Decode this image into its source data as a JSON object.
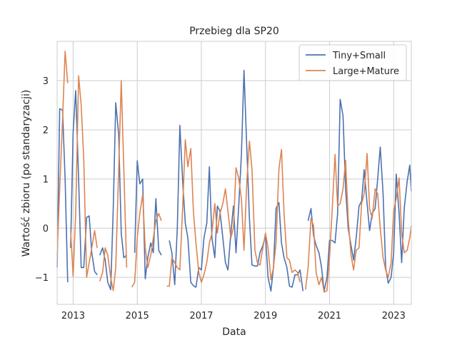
{
  "chart_data": {
    "type": "line",
    "title": "Przebieg dla SP20",
    "xlabel": "Data",
    "ylabel": "Wartość zbioru (po standaryzacji)",
    "xlim": [
      2012.5,
      2023.55
    ],
    "ylim": [
      -1.55,
      3.8
    ],
    "xticks": [
      2013,
      2015,
      2017,
      2019,
      2021,
      2023
    ],
    "yticks": [
      -1,
      0,
      1,
      2,
      3
    ],
    "grid": true,
    "legend_position": "top-right",
    "series": [
      {
        "name": "Tiny+Small",
        "color": "#4c72b0",
        "points": [
          [
            2012.5,
            -0.8
          ],
          [
            2012.58,
            2.43
          ],
          [
            2012.67,
            2.4
          ],
          [
            2012.75,
            1.0
          ],
          [
            2012.83,
            -1.1
          ],
          [
            null,
            null
          ],
          [
            2012.92,
            -0.4
          ],
          [
            2013.0,
            1.95
          ],
          [
            2013.08,
            2.8
          ],
          [
            2013.17,
            1.0
          ],
          [
            2013.25,
            -0.8
          ],
          [
            2013.33,
            -0.8
          ],
          [
            2013.42,
            0.22
          ],
          [
            2013.5,
            0.25
          ],
          [
            2013.58,
            -0.5
          ],
          [
            2013.67,
            -0.88
          ],
          [
            2013.75,
            -0.95
          ],
          [
            null,
            null
          ],
          [
            2013.83,
            -0.55
          ],
          [
            2013.92,
            -0.4
          ],
          [
            2014.0,
            -0.65
          ],
          [
            2014.08,
            -1.1
          ],
          [
            2014.17,
            -1.25
          ],
          [
            2014.25,
            0.4
          ],
          [
            2014.33,
            2.55
          ],
          [
            2014.42,
            1.9
          ],
          [
            2014.5,
            -0.1
          ],
          [
            2014.58,
            -0.6
          ],
          [
            2014.67,
            -0.55
          ],
          [
            null,
            null
          ],
          [
            2014.92,
            -0.5
          ],
          [
            2015.0,
            1.37
          ],
          [
            2015.08,
            0.9
          ],
          [
            2015.17,
            1.0
          ],
          [
            2015.25,
            -1.03
          ],
          [
            2015.33,
            -0.6
          ],
          [
            2015.42,
            -0.3
          ],
          [
            2015.5,
            -0.5
          ],
          [
            2015.58,
            0.6
          ],
          [
            2015.67,
            -0.45
          ],
          [
            2015.75,
            -0.55
          ],
          [
            null,
            null
          ],
          [
            2016.0,
            -0.25
          ],
          [
            2016.08,
            -0.5
          ],
          [
            2016.17,
            -1.15
          ],
          [
            2016.25,
            0.0
          ],
          [
            2016.33,
            2.09
          ],
          [
            2016.42,
            0.9
          ],
          [
            2016.5,
            0.1
          ],
          [
            2016.58,
            -0.2
          ],
          [
            2016.67,
            -1.1
          ],
          [
            2016.75,
            -1.17
          ],
          [
            2016.83,
            -1.2
          ],
          [
            2016.92,
            -0.8
          ],
          [
            2017.0,
            -0.85
          ],
          [
            2017.08,
            -0.2
          ],
          [
            2017.17,
            0.1
          ],
          [
            2017.25,
            1.25
          ],
          [
            2017.33,
            -0.2
          ],
          [
            2017.42,
            -0.6
          ],
          [
            2017.5,
            0.45
          ],
          [
            2017.58,
            0.35
          ],
          [
            2017.67,
            -0.2
          ],
          [
            2017.75,
            -0.7
          ],
          [
            2017.83,
            -0.85
          ],
          [
            2017.92,
            -0.1
          ],
          [
            2018.0,
            0.45
          ],
          [
            2018.08,
            -0.5
          ],
          [
            2018.17,
            0.5
          ],
          [
            2018.25,
            1.5
          ],
          [
            2018.33,
            3.21
          ],
          [
            2018.42,
            1.6
          ],
          [
            2018.5,
            0.2
          ],
          [
            2018.58,
            -0.75
          ],
          [
            2018.67,
            -0.77
          ],
          [
            2018.75,
            -0.77
          ],
          [
            2018.83,
            -0.5
          ],
          [
            2018.92,
            -0.35
          ],
          [
            2019.0,
            -0.15
          ],
          [
            2019.08,
            -1.0
          ],
          [
            2019.17,
            -1.28
          ],
          [
            2019.25,
            -0.8
          ],
          [
            2019.33,
            0.4
          ],
          [
            2019.42,
            0.52
          ],
          [
            2019.5,
            -0.3
          ],
          [
            2019.58,
            -0.6
          ],
          [
            2019.67,
            -0.8
          ],
          [
            2019.75,
            -1.18
          ],
          [
            2019.83,
            -1.2
          ],
          [
            2019.92,
            -0.95
          ],
          [
            2020.0,
            -0.95
          ],
          [
            2020.08,
            -0.85
          ],
          [
            2020.17,
            -1.28
          ],
          [
            null,
            null
          ],
          [
            2020.33,
            0.15
          ],
          [
            2020.42,
            0.4
          ],
          [
            2020.5,
            -0.15
          ],
          [
            2020.58,
            -0.35
          ],
          [
            2020.67,
            -0.5
          ],
          [
            2020.75,
            -0.8
          ],
          [
            2020.83,
            -1.28
          ],
          [
            2020.92,
            -1.0
          ],
          [
            2021.0,
            -0.25
          ],
          [
            2021.08,
            -0.25
          ],
          [
            2021.17,
            -0.3
          ],
          [
            2021.25,
            0.3
          ],
          [
            2021.33,
            2.62
          ],
          [
            2021.42,
            2.28
          ],
          [
            2021.5,
            0.8
          ],
          [
            2021.58,
            0.0
          ],
          [
            2021.67,
            -0.35
          ],
          [
            2021.75,
            -0.65
          ],
          [
            2021.83,
            -0.2
          ],
          [
            2021.92,
            0.45
          ],
          [
            2022.0,
            0.55
          ],
          [
            2022.08,
            1.19
          ],
          [
            2022.17,
            0.5
          ],
          [
            2022.25,
            -0.05
          ],
          [
            2022.33,
            0.3
          ],
          [
            2022.42,
            0.4
          ],
          [
            2022.5,
            1.0
          ],
          [
            2022.58,
            1.65
          ],
          [
            2022.67,
            0.7
          ],
          [
            2022.75,
            -0.8
          ],
          [
            2022.83,
            -1.12
          ],
          [
            2022.92,
            -1.0
          ],
          [
            2023.0,
            -0.5
          ],
          [
            2023.08,
            1.1
          ],
          [
            2023.17,
            0.3
          ],
          [
            2023.25,
            -0.7
          ],
          [
            2023.33,
            0.4
          ],
          [
            2023.42,
            0.95
          ],
          [
            2023.5,
            1.28
          ],
          [
            2023.55,
            0.75
          ]
        ]
      },
      {
        "name": "Large+Mature",
        "color": "#dd8452",
        "points": [
          [
            2012.5,
            -0.55
          ],
          [
            2012.58,
            0.8
          ],
          [
            2012.67,
            2.2
          ],
          [
            2012.75,
            3.6
          ],
          [
            2012.83,
            2.95
          ],
          [
            null,
            null
          ],
          [
            2012.92,
            -0.05
          ],
          [
            2013.0,
            -0.98
          ],
          [
            2013.08,
            0.3
          ],
          [
            2013.17,
            3.1
          ],
          [
            2013.25,
            2.5
          ],
          [
            2013.33,
            1.4
          ],
          [
            2013.42,
            -1.0
          ],
          [
            2013.5,
            -0.7
          ],
          [
            2013.58,
            -0.4
          ],
          [
            2013.67,
            -0.05
          ],
          [
            2013.75,
            -0.4
          ],
          [
            null,
            null
          ],
          [
            2013.83,
            -1.08
          ],
          [
            2013.92,
            -0.9
          ],
          [
            2014.0,
            -0.4
          ],
          [
            2014.08,
            -0.55
          ],
          [
            2014.17,
            -1.0
          ],
          [
            2014.25,
            -1.27
          ],
          [
            2014.33,
            -0.8
          ],
          [
            2014.42,
            1.2
          ],
          [
            2014.5,
            3.0
          ],
          [
            2014.58,
            1.2
          ],
          [
            2014.67,
            -0.8
          ],
          [
            null,
            null
          ],
          [
            2014.83,
            -1.2
          ],
          [
            2014.92,
            -1.1
          ],
          [
            2015.0,
            -0.2
          ],
          [
            2015.08,
            0.3
          ],
          [
            2015.17,
            0.68
          ],
          [
            2015.25,
            -0.4
          ],
          [
            2015.33,
            -0.8
          ],
          [
            2015.42,
            -0.55
          ],
          [
            2015.5,
            -0.2
          ],
          [
            2015.58,
            0.15
          ],
          [
            2015.67,
            0.3
          ],
          [
            2015.75,
            0.15
          ],
          [
            null,
            null
          ],
          [
            2015.92,
            -1.18
          ],
          [
            2016.0,
            -1.18
          ],
          [
            2016.08,
            -0.6
          ],
          [
            2016.17,
            -0.7
          ],
          [
            2016.25,
            -0.8
          ],
          [
            2016.33,
            -0.85
          ],
          [
            2016.42,
            0.5
          ],
          [
            2016.5,
            1.8
          ],
          [
            2016.58,
            1.25
          ],
          [
            2016.67,
            1.62
          ],
          [
            2016.75,
            0.35
          ],
          [
            2016.83,
            -0.3
          ],
          [
            2016.92,
            -0.9
          ],
          [
            2017.0,
            -1.1
          ],
          [
            2017.08,
            -0.95
          ],
          [
            2017.17,
            -0.7
          ],
          [
            2017.25,
            -0.3
          ],
          [
            2017.33,
            -0.1
          ],
          [
            2017.42,
            0.5
          ],
          [
            2017.5,
            -0.1
          ],
          [
            2017.58,
            0.3
          ],
          [
            2017.67,
            0.5
          ],
          [
            2017.75,
            0.8
          ],
          [
            2017.83,
            0.35
          ],
          [
            2017.92,
            -0.2
          ],
          [
            2018.0,
            0.0
          ],
          [
            2018.08,
            1.23
          ],
          [
            2018.17,
            1.0
          ],
          [
            2018.25,
            0.6
          ],
          [
            2018.33,
            -0.45
          ],
          [
            2018.42,
            0.95
          ],
          [
            2018.5,
            1.77
          ],
          [
            2018.58,
            1.2
          ],
          [
            2018.67,
            -0.45
          ],
          [
            2018.75,
            -0.7
          ],
          [
            2018.83,
            -0.75
          ],
          [
            2018.92,
            -0.4
          ],
          [
            2019.0,
            -0.1
          ],
          [
            2019.08,
            -0.4
          ],
          [
            2019.17,
            -1.05
          ],
          [
            2019.25,
            -0.8
          ],
          [
            2019.33,
            -0.3
          ],
          [
            2019.42,
            1.2
          ],
          [
            2019.5,
            1.6
          ],
          [
            2019.58,
            0.3
          ],
          [
            2019.67,
            -0.6
          ],
          [
            2019.75,
            -0.65
          ],
          [
            2019.83,
            -0.9
          ],
          [
            2019.92,
            -0.85
          ],
          [
            2020.0,
            -0.9
          ],
          [
            2020.08,
            -1.1
          ],
          [
            null,
            null
          ],
          [
            2020.25,
            -1.25
          ],
          [
            2020.33,
            -0.8
          ],
          [
            2020.42,
            0.2
          ],
          [
            2020.5,
            0.05
          ],
          [
            2020.58,
            -0.9
          ],
          [
            2020.67,
            -1.15
          ],
          [
            2020.75,
            -1.0
          ],
          [
            2020.83,
            -1.3
          ],
          [
            2020.92,
            -1.27
          ],
          [
            2021.0,
            -0.6
          ],
          [
            2021.08,
            0.35
          ],
          [
            2021.17,
            1.5
          ],
          [
            2021.25,
            0.45
          ],
          [
            2021.33,
            0.5
          ],
          [
            2021.42,
            0.8
          ],
          [
            2021.5,
            1.38
          ],
          [
            2021.58,
            0.2
          ],
          [
            2021.67,
            -0.55
          ],
          [
            2021.75,
            -0.85
          ],
          [
            2021.83,
            -0.45
          ],
          [
            2021.92,
            -0.4
          ],
          [
            2022.0,
            0.5
          ],
          [
            2022.08,
            0.7
          ],
          [
            2022.17,
            1.52
          ],
          [
            2022.25,
            0.4
          ],
          [
            2022.33,
            0.2
          ],
          [
            2022.42,
            0.8
          ],
          [
            2022.5,
            0.7
          ],
          [
            2022.58,
            0.0
          ],
          [
            2022.67,
            -0.6
          ],
          [
            2022.75,
            -0.85
          ],
          [
            2022.83,
            -1.0
          ],
          [
            2022.92,
            -0.7
          ],
          [
            2023.0,
            0.35
          ],
          [
            2023.08,
            0.6
          ],
          [
            2023.17,
            1.02
          ],
          [
            2023.25,
            -0.1
          ],
          [
            2023.33,
            -0.5
          ],
          [
            2023.42,
            -0.45
          ],
          [
            2023.5,
            -0.2
          ],
          [
            2023.55,
            0.05
          ]
        ]
      }
    ]
  }
}
